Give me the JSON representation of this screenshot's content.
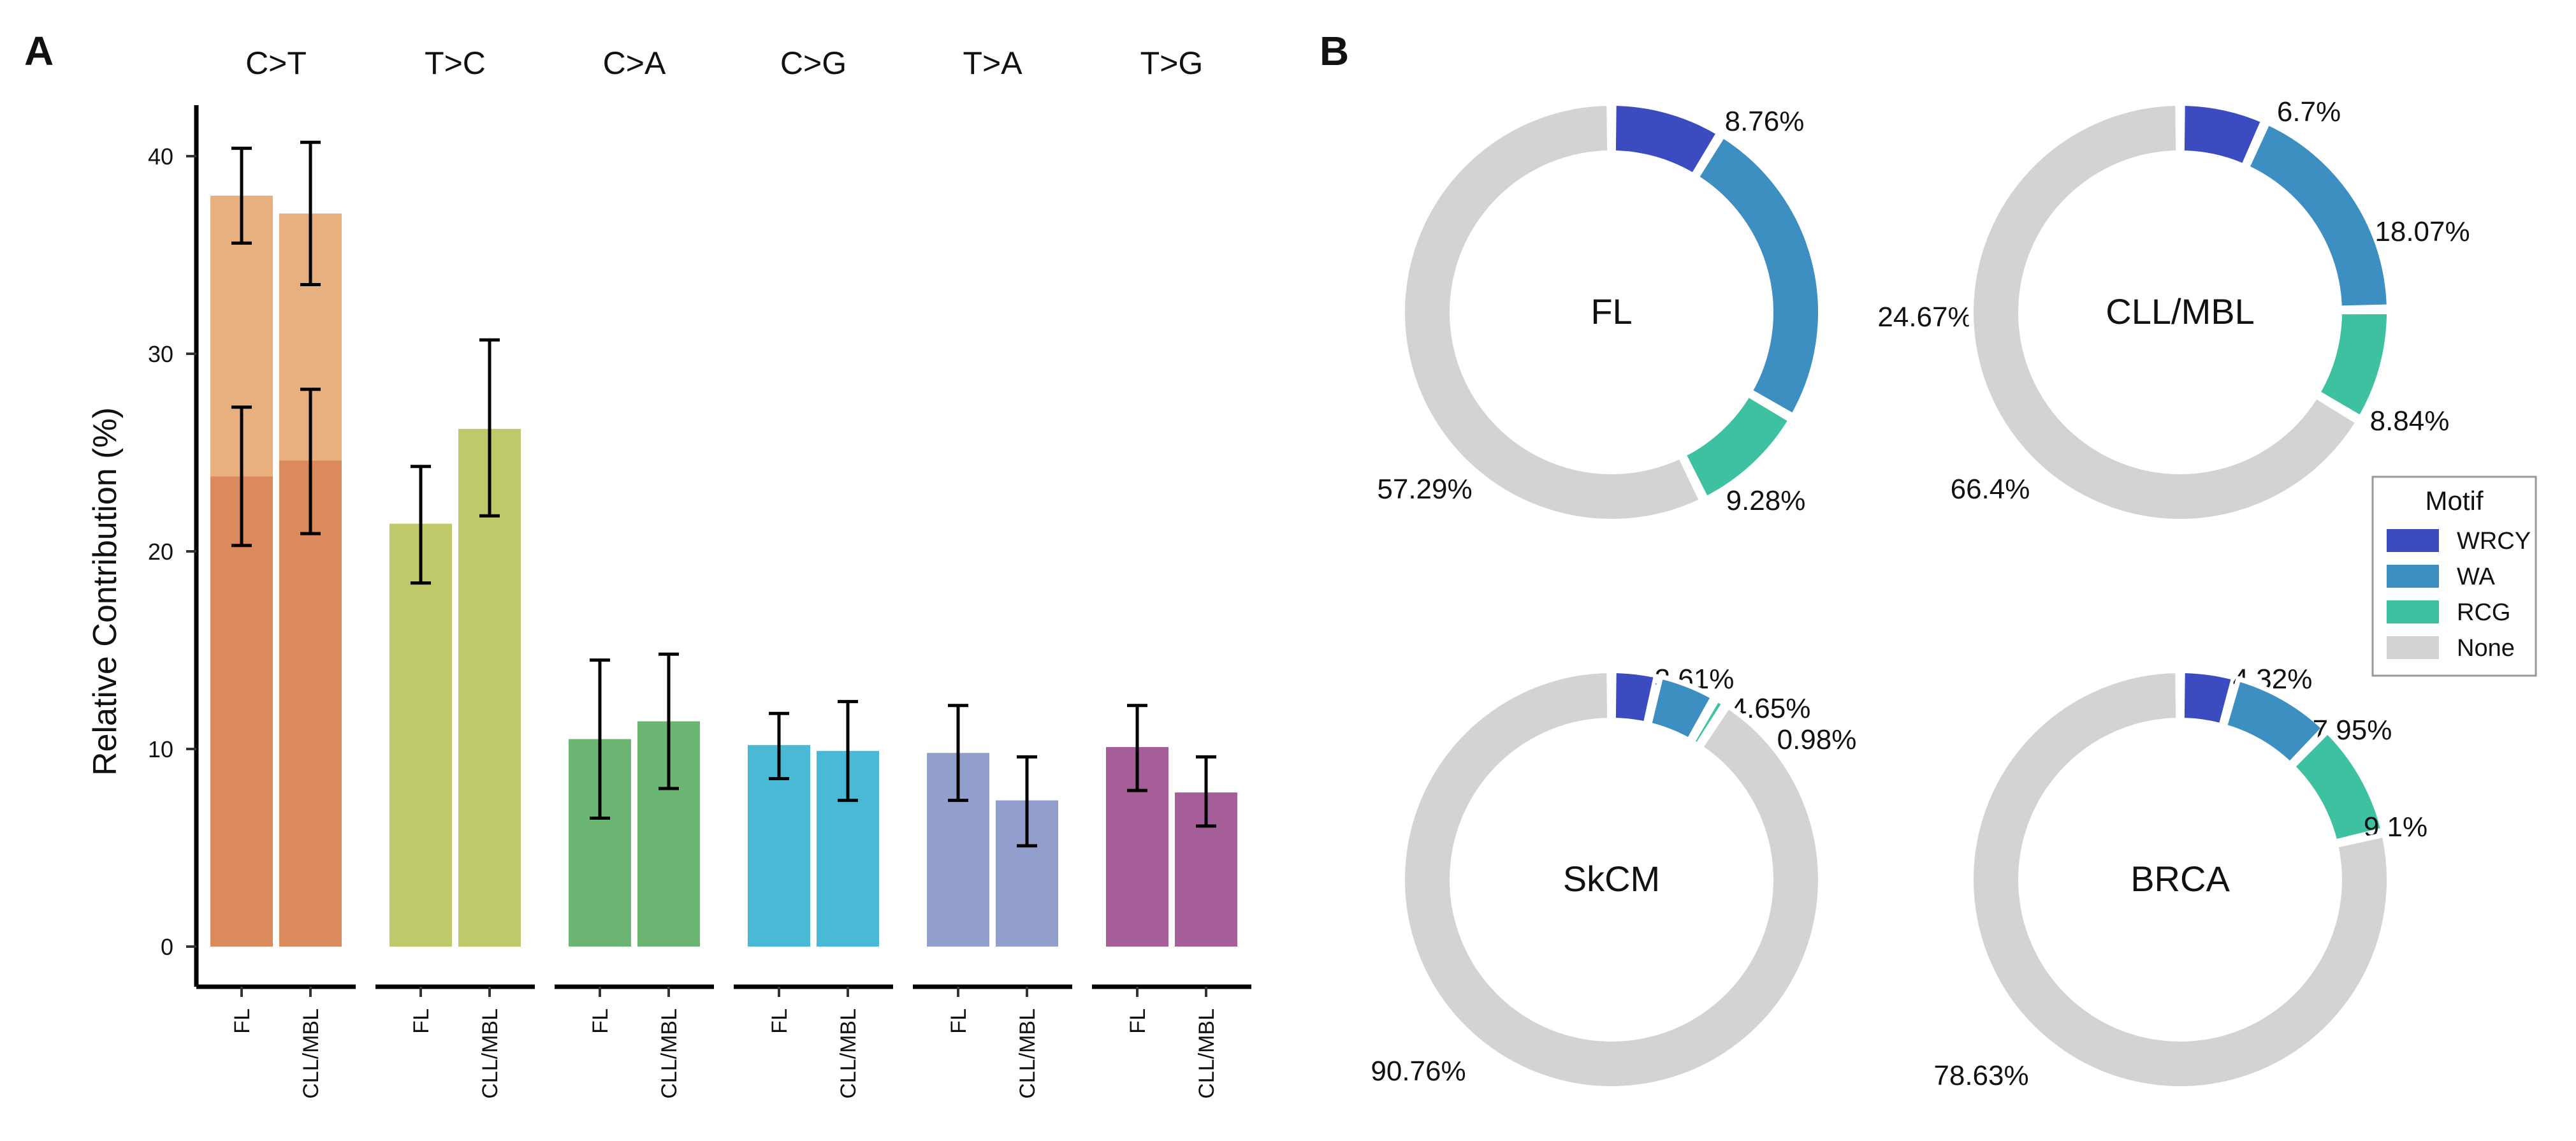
{
  "panel_labels": {
    "a": "A",
    "b": "B"
  },
  "chart_data": [
    {
      "type": "bar",
      "title": "",
      "xlabel": "",
      "ylabel": "Relative Contribution (%)",
      "ylim": [
        0,
        42
      ],
      "yticks": [
        "0",
        "10",
        "20",
        "30",
        "40"
      ],
      "ytick_values": [
        0,
        10,
        20,
        30,
        40
      ],
      "groups": [
        {
          "label": "C>T",
          "color": "#DB8A5E",
          "bars": [
            {
              "category": "FL",
              "value": 23.8,
              "err_low": 20.3,
              "err_high": 27.3,
              "stack_value": 38.0,
              "stack_err_low": 35.6,
              "stack_err_high": 40.4
            },
            {
              "category": "CLL/MBL",
              "value": 24.6,
              "err_low": 20.9,
              "err_high": 28.2,
              "stack_value": 37.1,
              "stack_err_low": 33.5,
              "stack_err_high": 40.7
            }
          ]
        },
        {
          "label": "T>C",
          "color": "#BFC96A",
          "bars": [
            {
              "category": "FL",
              "value": 21.4,
              "err_low": 18.4,
              "err_high": 24.3
            },
            {
              "category": "CLL/MBL",
              "value": 26.2,
              "err_low": 21.8,
              "err_high": 30.7
            }
          ]
        },
        {
          "label": "C>A",
          "color": "#6AB672",
          "bars": [
            {
              "category": "FL",
              "value": 10.5,
              "err_low": 6.5,
              "err_high": 14.5
            },
            {
              "category": "CLL/MBL",
              "value": 11.4,
              "err_low": 8.0,
              "err_high": 14.8
            }
          ]
        },
        {
          "label": "C>G",
          "color": "#4AB9D6",
          "bars": [
            {
              "category": "FL",
              "value": 10.2,
              "err_low": 8.5,
              "err_high": 11.8
            },
            {
              "category": "CLL/MBL",
              "value": 9.9,
              "err_low": 7.4,
              "err_high": 12.4
            }
          ]
        },
        {
          "label": "T>A",
          "color": "#929ECB",
          "bars": [
            {
              "category": "FL",
              "value": 9.8,
              "err_low": 7.4,
              "err_high": 12.2
            },
            {
              "category": "CLL/MBL",
              "value": 7.4,
              "err_low": 5.1,
              "err_high": 9.6
            }
          ]
        },
        {
          "label": "T>G",
          "color": "#A55E97",
          "bars": [
            {
              "category": "FL",
              "value": 10.1,
              "err_low": 7.9,
              "err_high": 12.2
            },
            {
              "category": "CLL/MBL",
              "value": 7.8,
              "err_low": 6.1,
              "err_high": 9.6
            }
          ]
        }
      ],
      "stack_color": "#E8B07E"
    },
    {
      "type": "pie",
      "variant": "donut",
      "legend": {
        "title": "Motif",
        "position": "right",
        "entries": [
          {
            "name": "WRCY",
            "color": "#3A4CC0"
          },
          {
            "name": "WA",
            "color": "#3D8FC1"
          },
          {
            "name": "RCG",
            "color": "#3EC1A0"
          },
          {
            "name": "None",
            "color": "#D3D3D3"
          }
        ]
      },
      "donuts": [
        {
          "title": "FL",
          "slices": [
            {
              "name": "WRCY",
              "value": 8.76,
              "label": "8.76%"
            },
            {
              "name": "WA",
              "value": 24.67,
              "label": "24.67%"
            },
            {
              "name": "RCG",
              "value": 9.28,
              "label": "9.28%"
            },
            {
              "name": "None",
              "value": 57.29,
              "label": "57.29%"
            }
          ]
        },
        {
          "title": "CLL/MBL",
          "slices": [
            {
              "name": "WRCY",
              "value": 6.7,
              "label": "6.7%"
            },
            {
              "name": "WA",
              "value": 18.07,
              "label": "18.07%"
            },
            {
              "name": "RCG",
              "value": 8.84,
              "label": "8.84%"
            },
            {
              "name": "None",
              "value": 66.4,
              "label": "66.4%"
            }
          ]
        },
        {
          "title": "SkCM",
          "slices": [
            {
              "name": "WRCY",
              "value": 3.61,
              "label": "3.61%"
            },
            {
              "name": "WA",
              "value": 4.65,
              "label": "4.65%"
            },
            {
              "name": "RCG",
              "value": 0.98,
              "label": "0.98%"
            },
            {
              "name": "None",
              "value": 90.76,
              "label": "90.76%"
            }
          ]
        },
        {
          "title": "BRCA",
          "slices": [
            {
              "name": "WRCY",
              "value": 4.32,
              "label": "4.32%"
            },
            {
              "name": "WA",
              "value": 7.95,
              "label": "7.95%"
            },
            {
              "name": "RCG",
              "value": 9.1,
              "label": "9.1%"
            },
            {
              "name": "None",
              "value": 78.63,
              "label": "78.63%"
            }
          ]
        }
      ]
    }
  ]
}
